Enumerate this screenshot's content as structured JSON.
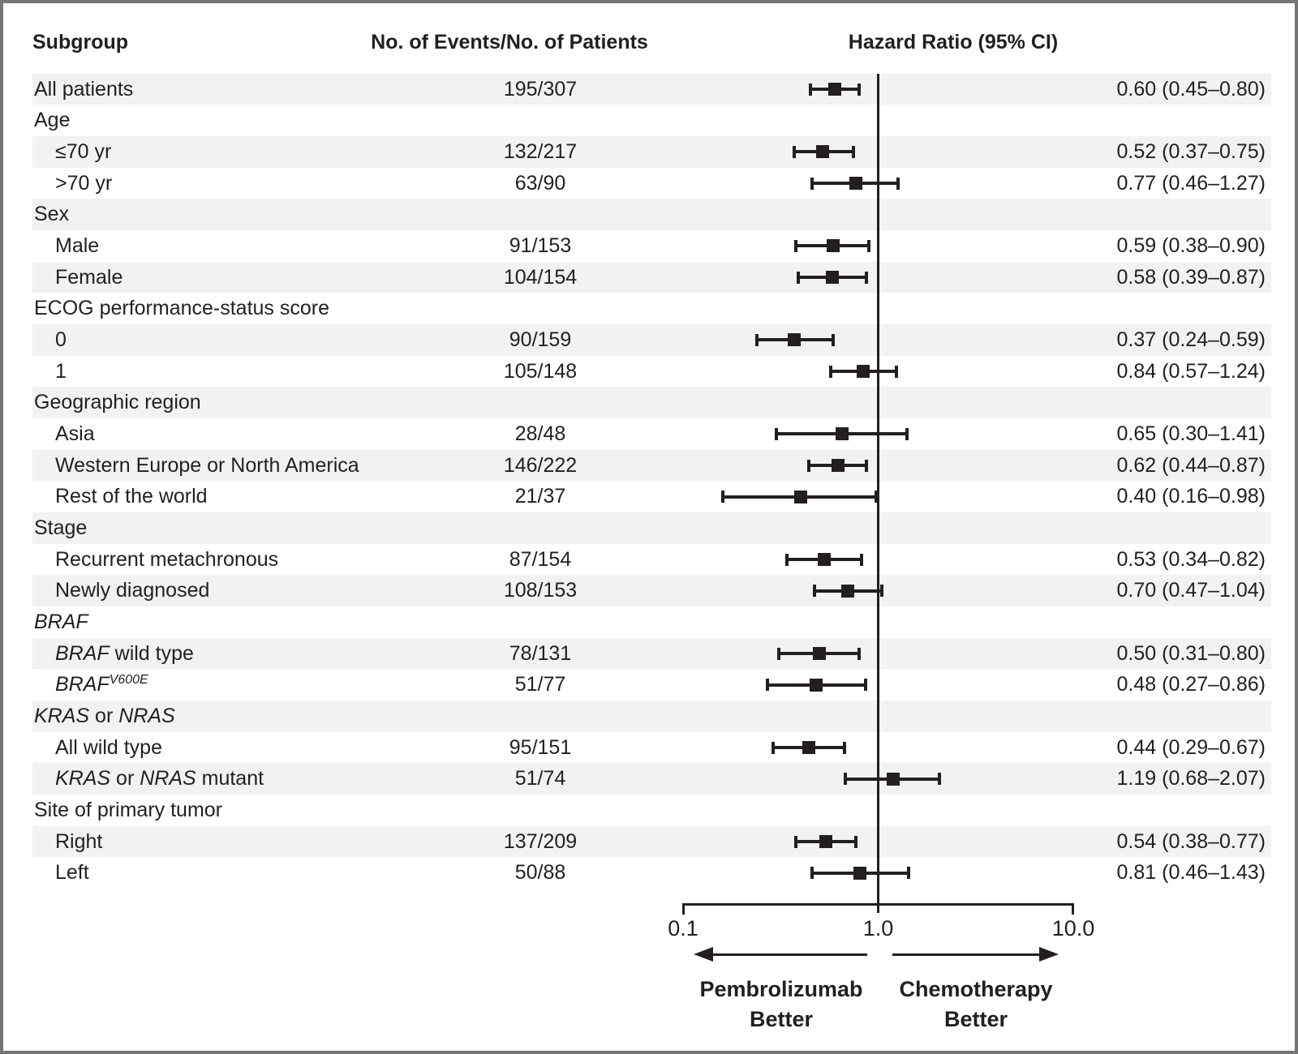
{
  "figure": {
    "col_subgroup": "Subgroup",
    "col_events": "No. of Events/No. of Patients",
    "col_hr": "Hazard Ratio (95% CI)"
  },
  "axis": {
    "ticks": [
      "0.1",
      "1.0",
      "10.0"
    ],
    "tick_values": [
      0.1,
      1.0,
      10.0
    ],
    "reference_value": 1.0,
    "left_arrow_label_line1": "Pembrolizumab",
    "left_arrow_label_line2": "Better",
    "right_arrow_label_line1": "Chemotherapy",
    "right_arrow_label_line2": "Better"
  },
  "colors": {
    "ink": "#231f20",
    "row_shade": "#f2f2f2",
    "border": "#757575",
    "background": "#ffffff"
  },
  "chart_data": {
    "type": "scatter",
    "variant": "forest-plot",
    "x_scale": "log",
    "x_range": [
      0.1,
      10.0
    ],
    "x_ticks": [
      0.1,
      1.0,
      10.0
    ],
    "reference_line": 1.0,
    "legend_position": "none",
    "grid": false,
    "columns": [
      "Subgroup",
      "No. of Events/No. of Patients",
      "Hazard Ratio (95% CI)"
    ],
    "rows": [
      {
        "label": "All patients",
        "indent": 0,
        "header": false,
        "events": "195/307",
        "hr": 0.6,
        "lo": 0.45,
        "hi": 0.8,
        "hr_text": "0.60 (0.45–0.80)"
      },
      {
        "label": "Age",
        "indent": 0,
        "header": true
      },
      {
        "label": "≤70 yr",
        "indent": 1,
        "header": false,
        "events": "132/217",
        "hr": 0.52,
        "lo": 0.37,
        "hi": 0.75,
        "hr_text": "0.52 (0.37–0.75)"
      },
      {
        "label": ">70 yr",
        "indent": 1,
        "header": false,
        "events": "63/90",
        "hr": 0.77,
        "lo": 0.46,
        "hi": 1.27,
        "hr_text": "0.77 (0.46–1.27)"
      },
      {
        "label": "Sex",
        "indent": 0,
        "header": true
      },
      {
        "label": "Male",
        "indent": 1,
        "header": false,
        "events": "91/153",
        "hr": 0.59,
        "lo": 0.38,
        "hi": 0.9,
        "hr_text": "0.59 (0.38–0.90)"
      },
      {
        "label": "Female",
        "indent": 1,
        "header": false,
        "events": "104/154",
        "hr": 0.58,
        "lo": 0.39,
        "hi": 0.87,
        "hr_text": "0.58 (0.39–0.87)"
      },
      {
        "label": "ECOG performance-status score",
        "indent": 0,
        "header": true
      },
      {
        "label": "0",
        "indent": 1,
        "header": false,
        "events": "90/159",
        "hr": 0.37,
        "lo": 0.24,
        "hi": 0.59,
        "hr_text": "0.37 (0.24–0.59)"
      },
      {
        "label": "1",
        "indent": 1,
        "header": false,
        "events": "105/148",
        "hr": 0.84,
        "lo": 0.57,
        "hi": 1.24,
        "hr_text": "0.84 (0.57–1.24)"
      },
      {
        "label": "Geographic region",
        "indent": 0,
        "header": true
      },
      {
        "label": "Asia",
        "indent": 1,
        "header": false,
        "events": "28/48",
        "hr": 0.65,
        "lo": 0.3,
        "hi": 1.41,
        "hr_text": "0.65 (0.30–1.41)"
      },
      {
        "label": "Western Europe or North America",
        "indent": 1,
        "header": false,
        "events": "146/222",
        "hr": 0.62,
        "lo": 0.44,
        "hi": 0.87,
        "hr_text": "0.62 (0.44–0.87)"
      },
      {
        "label": "Rest of the world",
        "indent": 1,
        "header": false,
        "events": "21/37",
        "hr": 0.4,
        "lo": 0.16,
        "hi": 0.98,
        "hr_text": "0.40 (0.16–0.98)"
      },
      {
        "label": "Stage",
        "indent": 0,
        "header": true
      },
      {
        "label": "Recurrent metachronous",
        "indent": 1,
        "header": false,
        "events": "87/154",
        "hr": 0.53,
        "lo": 0.34,
        "hi": 0.82,
        "hr_text": "0.53 (0.34–0.82)"
      },
      {
        "label": "Newly diagnosed",
        "indent": 1,
        "header": false,
        "events": "108/153",
        "hr": 0.7,
        "lo": 0.47,
        "hi": 1.04,
        "hr_text": "0.70 (0.47–1.04)"
      },
      {
        "label": [
          {
            "t": "BRAF",
            "i": true
          }
        ],
        "indent": 0,
        "header": true
      },
      {
        "label": [
          {
            "t": "BRAF",
            "i": true
          },
          {
            "t": " wild type"
          }
        ],
        "indent": 1,
        "header": false,
        "events": "78/131",
        "hr": 0.5,
        "lo": 0.31,
        "hi": 0.8,
        "hr_text": "0.50 (0.31–0.80)"
      },
      {
        "label": [
          {
            "t": "BRAF",
            "i": true
          },
          {
            "t": "V600E",
            "i": true,
            "sup": true
          }
        ],
        "indent": 1,
        "header": false,
        "events": "51/77",
        "hr": 0.48,
        "lo": 0.27,
        "hi": 0.86,
        "hr_text": "0.48 (0.27–0.86)"
      },
      {
        "label": [
          {
            "t": "KRAS",
            "i": true
          },
          {
            "t": " or "
          },
          {
            "t": "NRAS",
            "i": true
          }
        ],
        "indent": 0,
        "header": true
      },
      {
        "label": "All wild type",
        "indent": 1,
        "header": false,
        "events": "95/151",
        "hr": 0.44,
        "lo": 0.29,
        "hi": 0.67,
        "hr_text": "0.44 (0.29–0.67)"
      },
      {
        "label": [
          {
            "t": "KRAS",
            "i": true
          },
          {
            "t": " or "
          },
          {
            "t": "NRAS",
            "i": true
          },
          {
            "t": " mutant"
          }
        ],
        "indent": 1,
        "header": false,
        "events": "51/74",
        "hr": 1.19,
        "lo": 0.68,
        "hi": 2.07,
        "hr_text": "1.19 (0.68–2.07)"
      },
      {
        "label": "Site of primary tumor",
        "indent": 0,
        "header": true
      },
      {
        "label": "Right",
        "indent": 1,
        "header": false,
        "events": "137/209",
        "hr": 0.54,
        "lo": 0.38,
        "hi": 0.77,
        "hr_text": "0.54 (0.38–0.77)"
      },
      {
        "label": "Left",
        "indent": 1,
        "header": false,
        "events": "50/88",
        "hr": 0.81,
        "lo": 0.46,
        "hi": 1.43,
        "hr_text": "0.81 (0.46–1.43)"
      }
    ]
  }
}
